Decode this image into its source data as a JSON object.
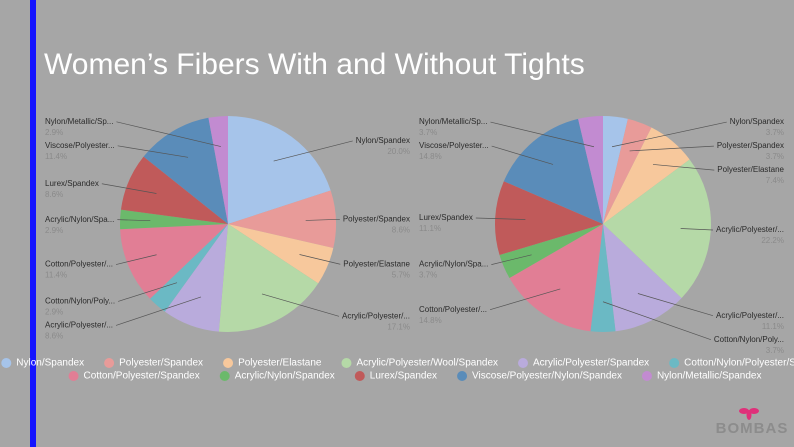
{
  "title": "Women’s Fibers With and Without Tights",
  "logo": "BOMBAS",
  "chart_data": [
    {
      "type": "pie",
      "categories": [
        "Nylon/Spandex",
        "Polyester/Spandex",
        "Polyester/Elastane",
        "Acrylic/Polyester/Wool/Spandex",
        "Acrylic/Polyester/Spandex",
        "Cotton/Nylon/Polyester/Spandex",
        "Cotton/Polyester/Spandex",
        "Acrylic/Nylon/Spandex",
        "Lurex/Spandex",
        "Viscose/Polyester/Nylon/Spandex",
        "Nylon/Metallic/Spandex"
      ],
      "labels": [
        "Nylon/Spandex",
        "Polyester/Spandex",
        "Polyester/Elastane",
        "Acrylic/Polyester/...",
        "Acrylic/Polyester/...",
        "Cotton/Nylon/Poly...",
        "Cotton/Polyester/...",
        "Acrylic/Nylon/Spa...",
        "Lurex/Spandex",
        "Viscose/Polyester...",
        "Nylon/Metallic/Sp..."
      ],
      "values": [
        20.0,
        8.6,
        5.7,
        17.1,
        8.6,
        2.9,
        11.4,
        2.9,
        8.6,
        11.4,
        2.9
      ],
      "value_labels": [
        "20.0%",
        "8.6%",
        "5.7%",
        "17.1%",
        "8.6%",
        "2.9%",
        "11.4%",
        "2.9%",
        "8.6%",
        "11.4%",
        "2.9%"
      ],
      "colors": [
        "#a6c4ea",
        "#e89b99",
        "#f7c89c",
        "#b5d9a7",
        "#b9abdc",
        "#6bb9c4",
        "#e17e95",
        "#6bb96b",
        "#c05a5a",
        "#5a8cb9",
        "#c28bd1"
      ]
    },
    {
      "type": "pie",
      "categories": [
        "Nylon/Spandex",
        "Polyester/Spandex",
        "Polyester/Elastane",
        "Acrylic/Polyester/Wool/Spandex",
        "Acrylic/Polyester/Spandex",
        "Cotton/Nylon/Polyester/Spandex",
        "Cotton/Polyester/Spandex",
        "Acrylic/Nylon/Spandex",
        "Lurex/Spandex",
        "Viscose/Polyester/Nylon/Spandex",
        "Nylon/Metallic/Spandex"
      ],
      "labels": [
        "Nylon/Spandex",
        "Polyester/Spandex",
        "Polyester/Elastane",
        "Acrylic/Polyester/...",
        "Acrylic/Polyester/...",
        "Cotton/Nylon/Poly...",
        "Cotton/Polyester/...",
        "Acrylic/Nylon/Spa...",
        "Lurex/Spandex",
        "Viscose/Polyester...",
        "Nylon/Metallic/Sp..."
      ],
      "values": [
        3.7,
        3.7,
        7.4,
        22.2,
        11.1,
        3.7,
        14.8,
        3.7,
        11.1,
        14.8,
        3.7
      ],
      "value_labels": [
        "3.7%",
        "3.7%",
        "7.4%",
        "22.2%",
        "11.1%",
        "3.7%",
        "14.8%",
        "3.7%",
        "11.1%",
        "14.8%",
        "3.7%"
      ],
      "colors": [
        "#a6c4ea",
        "#e89b99",
        "#f7c89c",
        "#b5d9a7",
        "#b9abdc",
        "#6bb9c4",
        "#e17e95",
        "#6bb96b",
        "#c05a5a",
        "#5a8cb9",
        "#c28bd1"
      ]
    }
  ]
}
